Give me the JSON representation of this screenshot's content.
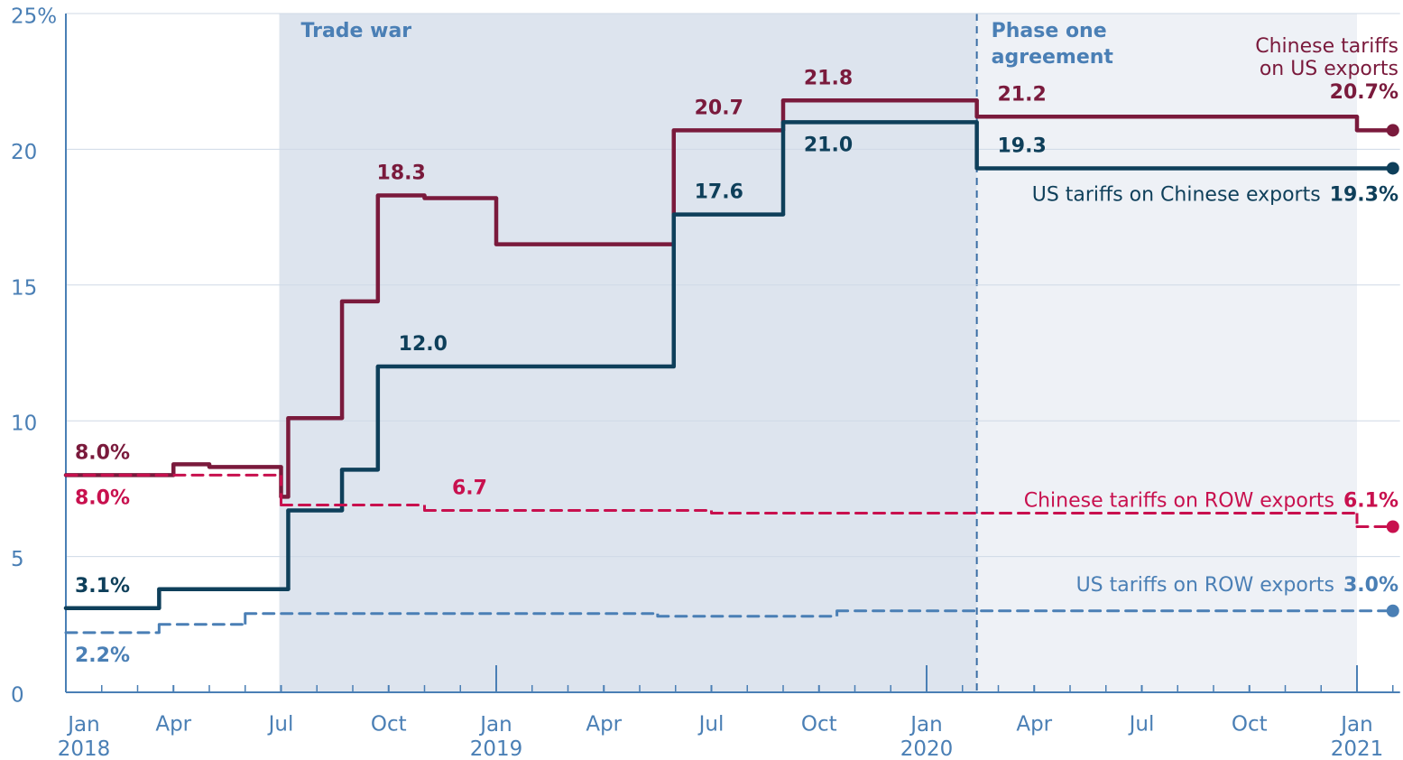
{
  "chart_data": {
    "type": "step",
    "xlim": [
      0,
      37.2
    ],
    "ylim": [
      0,
      25
    ],
    "yticks": [
      0,
      5,
      10,
      15,
      20,
      {
        "value": 25,
        "label": "25%"
      }
    ],
    "xticks": [
      {
        "value": 0,
        "label": "Jan 2018"
      },
      {
        "value": 3,
        "label": "Apr"
      },
      {
        "value": 6,
        "label": "Jul"
      },
      {
        "value": 9,
        "label": "Oct"
      },
      {
        "value": 12,
        "label": "Jan 2019"
      },
      {
        "value": 15,
        "label": "Apr"
      },
      {
        "value": 18,
        "label": "Jul"
      },
      {
        "value": 21,
        "label": "Oct"
      },
      {
        "value": 24,
        "label": "Jan 2020"
      },
      {
        "value": 27,
        "label": "Apr"
      },
      {
        "value": 30,
        "label": "Jul"
      },
      {
        "value": 33,
        "label": "Oct"
      },
      {
        "value": 36,
        "label": "Jan 2021"
      }
    ],
    "grid": true,
    "shaded_regions": [
      {
        "label": "Trade war",
        "start": 5.95,
        "end": 25.4,
        "color": "#dde4ee"
      },
      {
        "label": "Phase one agreement",
        "start": 25.4,
        "end": 36,
        "color": "#eef1f6"
      }
    ],
    "series": [
      {
        "name": "Chinese tariffs on US exports",
        "color": "#7a1a3c",
        "dash": false,
        "x": [
          0,
          3,
          4,
          6,
          6.2,
          7.7,
          8.7,
          10,
          12,
          16.95,
          20,
          25.4,
          36,
          37
        ],
        "values": [
          8.0,
          8.4,
          8.3,
          7.2,
          10.1,
          14.4,
          18.3,
          18.2,
          16.5,
          20.7,
          21.8,
          21.2,
          20.7,
          20.7
        ],
        "value_labels": [
          "8.0%",
          null,
          null,
          null,
          null,
          null,
          "18.3",
          null,
          null,
          "20.7",
          "21.8",
          "21.2",
          null,
          "20.7%"
        ]
      },
      {
        "name": "US tariffs on Chinese exports",
        "color": "#0e3f5a",
        "dash": false,
        "x": [
          0,
          2.6,
          6.2,
          7.7,
          8.7,
          16.95,
          20,
          25.4,
          37
        ],
        "values": [
          3.1,
          3.8,
          6.7,
          8.2,
          12.0,
          17.6,
          21.0,
          19.3,
          19.3
        ],
        "value_labels": [
          "3.1%",
          null,
          null,
          null,
          "12.0",
          "17.6",
          "21.0",
          "19.3",
          "19.3%"
        ]
      },
      {
        "name": "Chinese tariffs on ROW exports",
        "color": "#c8104e",
        "dash": true,
        "x": [
          0,
          6,
          10,
          18,
          36,
          37
        ],
        "values": [
          8.0,
          6.9,
          6.7,
          6.6,
          6.1,
          6.1
        ],
        "value_labels": [
          "8.0%",
          null,
          "6.7",
          null,
          null,
          "6.1%"
        ]
      },
      {
        "name": "US tariffs on ROW exports",
        "color": "#4a7fb5",
        "dash": true,
        "x": [
          0,
          2.6,
          5,
          16.5,
          21.5,
          37
        ],
        "values": [
          2.2,
          2.5,
          2.9,
          2.8,
          3.0,
          3.0
        ],
        "value_labels": [
          "2.2%",
          null,
          null,
          null,
          null,
          "3.0%"
        ]
      }
    ]
  }
}
